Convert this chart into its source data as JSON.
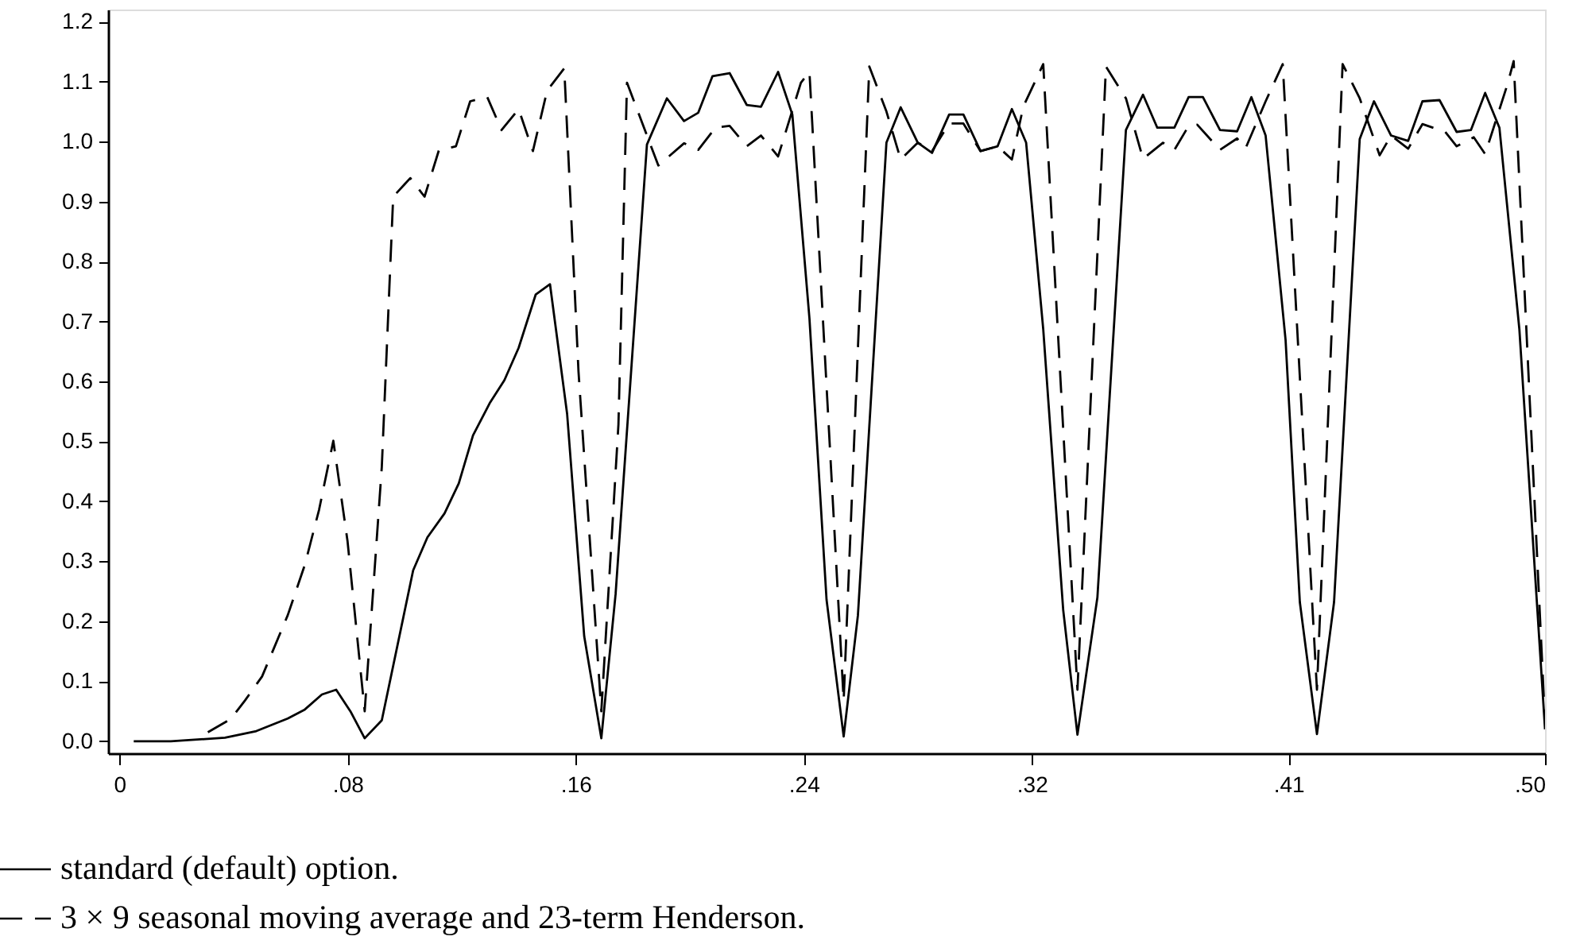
{
  "chart_data": {
    "type": "line",
    "legend": "bottom",
    "grid": false,
    "marker": "none",
    "xlim": [
      -0.004,
      0.5
    ],
    "ylim": [
      -0.02,
      1.22
    ],
    "xticks": [
      {
        "value": 0,
        "label": "0"
      },
      {
        "value": 0.08,
        "label": ".08"
      },
      {
        "value": 0.16,
        "label": ".16"
      },
      {
        "value": 0.24,
        "label": ".24"
      },
      {
        "value": 0.32,
        "label": ".32"
      },
      {
        "value": 0.41,
        "label": ".41"
      },
      {
        "value": 0.5,
        "label": ".50"
      }
    ],
    "yticks": [
      {
        "value": 0,
        "label": "0.0"
      },
      {
        "value": 0.1,
        "label": "0.1"
      },
      {
        "value": 0.2,
        "label": "0.2"
      },
      {
        "value": 0.3,
        "label": "0.3"
      },
      {
        "value": 0.4,
        "label": "0.4"
      },
      {
        "value": 0.5,
        "label": "0.5"
      },
      {
        "value": 0.6,
        "label": "0.6"
      },
      {
        "value": 0.7,
        "label": "0.7"
      },
      {
        "value": 0.8,
        "label": "0.8"
      },
      {
        "value": 0.9,
        "label": "0.9"
      },
      {
        "value": 1.0,
        "label": "1.0"
      },
      {
        "value": 1.1,
        "label": "1.1"
      },
      {
        "value": 1.2,
        "label": "1.2"
      }
    ],
    "series": [
      {
        "name": "standard (default) option.",
        "color": "#000000",
        "line_style": "solid",
        "x": [
          0.005,
          0.018,
          0.037,
          0.048,
          0.059,
          0.065,
          0.071,
          0.076,
          0.081,
          0.086,
          0.092,
          0.103,
          0.108,
          0.114,
          0.119,
          0.124,
          0.13,
          0.135,
          0.14,
          0.146,
          0.151,
          0.157,
          0.163,
          0.169,
          0.174,
          0.185,
          0.192,
          0.198,
          0.203,
          0.208,
          0.214,
          0.22,
          0.225,
          0.231,
          0.236,
          0.242,
          0.248,
          0.254,
          0.259,
          0.269,
          0.274,
          0.28,
          0.285,
          0.291,
          0.296,
          0.302,
          0.308,
          0.313,
          0.318,
          0.324,
          0.331,
          0.336,
          0.343,
          0.353,
          0.359,
          0.364,
          0.37,
          0.375,
          0.38,
          0.386,
          0.392,
          0.397,
          0.402,
          0.409,
          0.414,
          0.42,
          0.426,
          0.435,
          0.44,
          0.446,
          0.452,
          0.457,
          0.463,
          0.469,
          0.474,
          0.479,
          0.484,
          0.491,
          0.5
        ],
        "values": [
          0,
          0,
          0.006,
          0.017,
          0.038,
          0.053,
          0.078,
          0.086,
          0.05,
          0.005,
          0.035,
          0.285,
          0.34,
          0.38,
          0.43,
          0.51,
          0.565,
          0.602,
          0.656,
          0.745,
          0.762,
          0.546,
          0.175,
          0.005,
          0.245,
          0.995,
          1.072,
          1.034,
          1.048,
          1.109,
          1.114,
          1.061,
          1.058,
          1.116,
          1.045,
          0.705,
          0.236,
          0.008,
          0.21,
          0.998,
          1.057,
          0.998,
          0.981,
          1.045,
          1.045,
          0.984,
          0.992,
          1.054,
          0.998,
          0.687,
          0.219,
          0.011,
          0.24,
          1.019,
          1.078,
          1.023,
          1.023,
          1.074,
          1.074,
          1.019,
          1.017,
          1.074,
          1.01,
          0.669,
          0.232,
          0.012,
          0.232,
          1.004,
          1.067,
          1.01,
          1.001,
          1.067,
          1.069,
          1.016,
          1.019,
          1.081,
          1.023,
          0.687,
          0.02
        ]
      },
      {
        "name": "3 × 9 seasonal moving average and 23-term Henderson.",
        "color": "#000000",
        "line_style": "dashed",
        "x": [
          0.031,
          0.039,
          0.044,
          0.05,
          0.059,
          0.065,
          0.07,
          0.075,
          0.08,
          0.086,
          0.092,
          0.096,
          0.102,
          0.107,
          0.112,
          0.118,
          0.123,
          0.129,
          0.134,
          0.14,
          0.145,
          0.15,
          0.156,
          0.161,
          0.169,
          0.175,
          0.178,
          0.189,
          0.198,
          0.203,
          0.209,
          0.214,
          0.22,
          0.225,
          0.231,
          0.239,
          0.242,
          0.254,
          0.263,
          0.269,
          0.274,
          0.28,
          0.285,
          0.291,
          0.296,
          0.302,
          0.308,
          0.313,
          0.317,
          0.324,
          0.336,
          0.346,
          0.353,
          0.359,
          0.366,
          0.37,
          0.375,
          0.378,
          0.386,
          0.392,
          0.395,
          0.402,
          0.408,
          0.42,
          0.429,
          0.435,
          0.442,
          0.446,
          0.452,
          0.457,
          0.465,
          0.469,
          0.475,
          0.479,
          0.487,
          0.489,
          0.5
        ],
        "values": [
          0.015,
          0.037,
          0.068,
          0.108,
          0.21,
          0.294,
          0.386,
          0.501,
          0.333,
          0.05,
          0.457,
          0.908,
          0.939,
          0.908,
          0.985,
          0.992,
          1.067,
          1.074,
          1.019,
          1.054,
          0.984,
          1.085,
          1.122,
          0.616,
          0.05,
          0.528,
          1.098,
          0.96,
          0.997,
          0.986,
          1.023,
          1.026,
          0.992,
          1.01,
          0.975,
          1.098,
          1.116,
          0.068,
          1.125,
          1.05,
          0.97,
          0.998,
          0.984,
          1.03,
          1.03,
          0.984,
          0.992,
          0.97,
          1.058,
          1.129,
          0.086,
          1.125,
          1.072,
          0.971,
          0.998,
          0.986,
          1.026,
          1.028,
          0.986,
          1.005,
          0.989,
          1.067,
          1.129,
          0.086,
          1.129,
          1.072,
          0.977,
          1.01,
          0.988,
          1.029,
          1.016,
          0.992,
          1.007,
          0.979,
          1.098,
          1.134,
          0.03
        ]
      }
    ]
  }
}
